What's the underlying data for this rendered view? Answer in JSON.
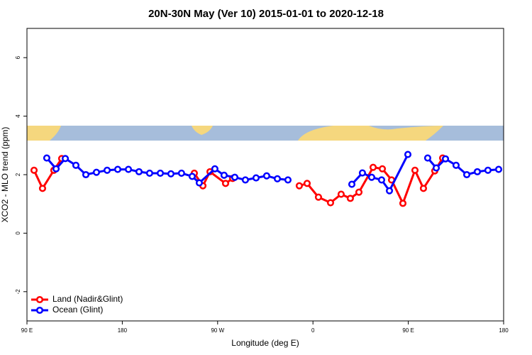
{
  "chart_data": {
    "type": "line",
    "title": "20N-30N May (Ver 10)   2015-01-01 to 2020-12-18",
    "xlabel": "Longitude (deg E)",
    "ylabel": "XCO2 - MLO trend (ppm)",
    "xlim": [
      90,
      540
    ],
    "xticks": [
      {
        "value": 90,
        "label": "90 E"
      },
      180,
      {
        "value": 270,
        "label": "90 W"
      },
      {
        "value": 360,
        "label": "0"
      },
      {
        "value": 450,
        "label": "90 E"
      },
      {
        "value": 540,
        "label": "180"
      }
    ],
    "ylim": [
      -3,
      7
    ],
    "yticks": [
      -2,
      0,
      2,
      4,
      6
    ],
    "legend": "bottom-left",
    "series": [
      {
        "name": "Land (Nadir&Glint)",
        "color": "#ff0000",
        "x": [
          96.7,
          104.7,
          115.4,
          122.8,
          null,
          248.0,
          256.1,
          262.8,
          277.5,
          284.2,
          null,
          347.1,
          354.5,
          365.2,
          376.6,
          386.6,
          395.3,
          403.4,
          416.8,
          425.5,
          434.2,
          444.9,
          456.3,
          464.3,
          475.0,
          482.4
        ],
        "values": [
          2.15,
          1.53,
          2.15,
          2.55,
          null,
          2.05,
          1.62,
          2.1,
          1.7,
          1.87,
          null,
          1.62,
          1.7,
          1.23,
          1.04,
          1.33,
          1.19,
          1.4,
          2.25,
          2.2,
          1.82,
          1.02,
          2.15,
          1.53,
          2.13,
          2.57
        ]
      },
      {
        "name": "Ocean (Glint)",
        "color": "#0000ff",
        "x": [
          108.7,
          117.5,
          126.2,
          136.2,
          145.6,
          155.6,
          165.7,
          175.7,
          185.8,
          195.8,
          205.8,
          215.9,
          225.9,
          235.9,
          246.0,
          252.7,
          267.4,
          276.1,
          286.2,
          296.2,
          306.3,
          316.3,
          326.4,
          336.4,
          null,
          396.7,
          406.7,
          415.4,
          424.8,
          432.2,
          449.6,
          null,
          468.3,
          476.4,
          485.1,
          495.1,
          505.2,
          515.2,
          525.2,
          535.3
        ],
        "values": [
          2.57,
          2.2,
          2.55,
          2.32,
          2.0,
          2.08,
          2.15,
          2.18,
          2.18,
          2.1,
          2.05,
          2.05,
          2.03,
          2.05,
          1.94,
          1.72,
          2.2,
          1.98,
          1.91,
          1.82,
          1.89,
          1.96,
          1.86,
          1.82,
          null,
          1.67,
          2.06,
          1.91,
          1.82,
          1.45,
          2.69,
          null,
          2.57,
          2.23,
          2.54,
          2.32,
          2.0,
          2.1,
          2.15,
          2.18
        ]
      }
    ]
  }
}
